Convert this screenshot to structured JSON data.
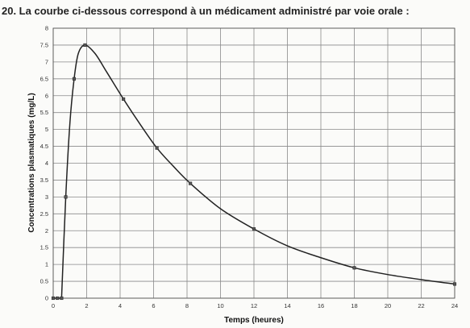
{
  "question": "20. La courbe ci-dessous correspond à un médicament administré par voie orale :",
  "chart_data": {
    "type": "line",
    "title": "",
    "xlabel": "Temps (heures)",
    "ylabel": "Concentrations plasmatiques (mg/L)",
    "xlim": [
      0,
      24
    ],
    "ylim": [
      0,
      8
    ],
    "xticks": [
      0,
      2,
      4,
      6,
      8,
      10,
      12,
      14,
      16,
      18,
      20,
      22,
      24
    ],
    "yticks": [
      0,
      0.5,
      1,
      1.5,
      2,
      2.5,
      3,
      3.5,
      4,
      4.5,
      5,
      5.5,
      6,
      6.5,
      7,
      7.5,
      8
    ],
    "grid": true,
    "series": [
      {
        "x": [
          0,
          0.25,
          0.5,
          0.75,
          1.25,
          1.9,
          4.2,
          6.2,
          8.2,
          12,
          18,
          24
        ],
        "y": [
          0,
          0,
          0,
          3,
          6.5,
          7.5,
          5.9,
          4.45,
          3.4,
          2.05,
          0.9,
          0.42
        ]
      }
    ],
    "curve": {
      "x": [
        0.5,
        0.75,
        1.0,
        1.25,
        1.5,
        1.9,
        2.5,
        3.2,
        4.2,
        5.2,
        6.2,
        7.2,
        8.2,
        10,
        12,
        14,
        16,
        18,
        20,
        22,
        24
      ],
      "y": [
        0,
        3,
        5.2,
        6.5,
        7.25,
        7.5,
        7.25,
        6.7,
        5.9,
        5.15,
        4.45,
        3.9,
        3.4,
        2.65,
        2.05,
        1.55,
        1.2,
        0.9,
        0.7,
        0.55,
        0.42
      ]
    }
  }
}
